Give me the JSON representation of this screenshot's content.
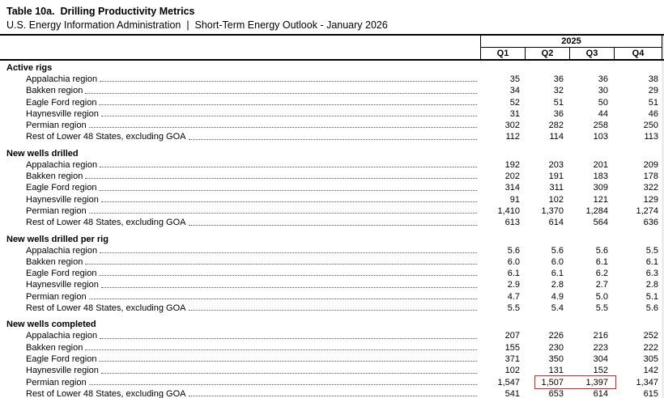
{
  "title": "Table 10a.  Drilling Productivity Metrics",
  "subtitle": "U.S. Energy Information Administration  |  Short-Term Energy Outlook - January 2026",
  "year": "2025",
  "quarters": [
    "Q1",
    "Q2",
    "Q3",
    "Q4"
  ],
  "highlight": {
    "section": 3,
    "row": 4,
    "columns": [
      1,
      2
    ],
    "color": "#e02318"
  },
  "sections": [
    {
      "label": "Active rigs",
      "rows": [
        {
          "label": "Appalachia region",
          "values": [
            "35",
            "36",
            "36",
            "38"
          ]
        },
        {
          "label": "Bakken region",
          "values": [
            "34",
            "32",
            "30",
            "29"
          ]
        },
        {
          "label": "Eagle Ford region",
          "values": [
            "52",
            "51",
            "50",
            "51"
          ]
        },
        {
          "label": "Haynesville region",
          "values": [
            "31",
            "36",
            "44",
            "46"
          ]
        },
        {
          "label": "Permian region",
          "values": [
            "302",
            "282",
            "258",
            "250"
          ]
        },
        {
          "label": "Rest of Lower 48 States, excluding GOA",
          "values": [
            "112",
            "114",
            "103",
            "113"
          ]
        }
      ]
    },
    {
      "label": "New wells drilled",
      "rows": [
        {
          "label": "Appalachia region",
          "values": [
            "192",
            "203",
            "201",
            "209"
          ]
        },
        {
          "label": "Bakken region",
          "values": [
            "202",
            "191",
            "183",
            "178"
          ]
        },
        {
          "label": "Eagle Ford region",
          "values": [
            "314",
            "311",
            "309",
            "322"
          ]
        },
        {
          "label": "Haynesville region",
          "values": [
            "91",
            "102",
            "121",
            "129"
          ]
        },
        {
          "label": "Permian region",
          "values": [
            "1,410",
            "1,370",
            "1,284",
            "1,274"
          ]
        },
        {
          "label": "Rest of Lower 48 States, excluding GOA",
          "values": [
            "613",
            "614",
            "564",
            "636"
          ]
        }
      ]
    },
    {
      "label": "New wells drilled per rig",
      "rows": [
        {
          "label": "Appalachia region",
          "values": [
            "5.6",
            "5.6",
            "5.6",
            "5.5"
          ]
        },
        {
          "label": "Bakken region",
          "values": [
            "6.0",
            "6.0",
            "6.1",
            "6.1"
          ]
        },
        {
          "label": "Eagle Ford region",
          "values": [
            "6.1",
            "6.1",
            "6.2",
            "6.3"
          ]
        },
        {
          "label": "Haynesville region",
          "values": [
            "2.9",
            "2.8",
            "2.7",
            "2.8"
          ]
        },
        {
          "label": "Permian region",
          "values": [
            "4.7",
            "4.9",
            "5.0",
            "5.1"
          ]
        },
        {
          "label": "Rest of Lower 48 States, excluding GOA",
          "values": [
            "5.5",
            "5.4",
            "5.5",
            "5.6"
          ]
        }
      ]
    },
    {
      "label": "New wells completed",
      "rows": [
        {
          "label": "Appalachia region",
          "values": [
            "207",
            "226",
            "216",
            "252"
          ]
        },
        {
          "label": "Bakken region",
          "values": [
            "155",
            "230",
            "223",
            "222"
          ]
        },
        {
          "label": "Eagle Ford region",
          "values": [
            "371",
            "350",
            "304",
            "305"
          ]
        },
        {
          "label": "Haynesville region",
          "values": [
            "102",
            "131",
            "152",
            "142"
          ]
        },
        {
          "label": "Permian region",
          "values": [
            "1,547",
            "1,507",
            "1,397",
            "1,347"
          ]
        },
        {
          "label": "Rest of Lower 48 States, excluding GOA",
          "values": [
            "541",
            "653",
            "614",
            "615"
          ]
        }
      ]
    }
  ]
}
